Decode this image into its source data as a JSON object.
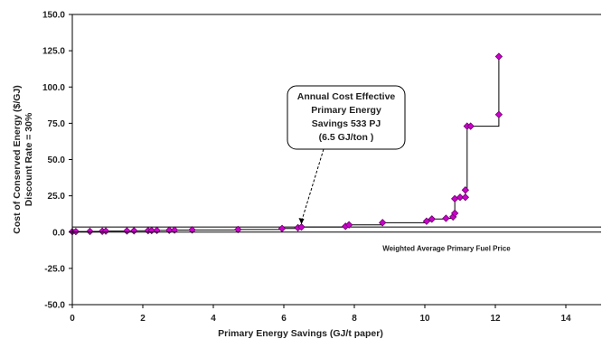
{
  "chart_data": {
    "type": "scatter",
    "xlabel": "Primary Energy Savings (GJ/t paper)",
    "ylabel_lines": [
      "Cost of Conserved Energy ($/GJ)",
      "Discount Rate = 30%"
    ],
    "xlim": [
      0,
      15
    ],
    "ylim": [
      -50,
      150
    ],
    "x_ticks": [
      "0",
      "2",
      "4",
      "6",
      "8",
      "10",
      "12",
      "14"
    ],
    "y_ticks": [
      "150.0",
      "125.0",
      "100.0",
      "75.0",
      "50.0",
      "25.0",
      "0.0",
      "-25.0",
      "-50.0"
    ],
    "marker_color": "#cc00cc",
    "grid": false,
    "series": [
      {
        "values": [
          [
            0.0,
            0.3
          ],
          [
            0.1,
            0.4
          ],
          [
            0.5,
            0.5
          ],
          [
            0.85,
            0.6
          ],
          [
            0.95,
            0.7
          ],
          [
            1.55,
            0.8
          ],
          [
            1.75,
            0.9
          ],
          [
            2.15,
            1.0
          ],
          [
            2.25,
            1.1
          ],
          [
            2.4,
            1.2
          ],
          [
            2.75,
            1.3
          ],
          [
            2.9,
            1.4
          ],
          [
            3.4,
            1.5
          ],
          [
            4.7,
            1.8
          ],
          [
            5.95,
            2.5
          ],
          [
            6.4,
            3.0
          ],
          [
            6.5,
            3.5
          ],
          [
            7.75,
            4.0
          ],
          [
            7.85,
            5.0
          ],
          [
            8.8,
            6.5
          ],
          [
            10.05,
            7.5
          ],
          [
            10.2,
            9.0
          ],
          [
            10.6,
            9.5
          ],
          [
            10.8,
            10.5
          ],
          [
            10.85,
            13.0
          ],
          [
            10.85,
            23.0
          ],
          [
            11.0,
            24.0
          ],
          [
            11.15,
            24.0
          ],
          [
            11.15,
            29.0
          ],
          [
            11.2,
            73.0
          ],
          [
            11.3,
            73.0
          ],
          [
            12.1,
            81.0
          ],
          [
            12.1,
            121.0
          ]
        ]
      }
    ],
    "reference_line": {
      "y": 3.5,
      "label": "Weighted Average Primary Fuel Price"
    },
    "annotation": {
      "lines": [
        "Annual Cost Effective",
        "Primary Energy",
        "Savings 533 PJ",
        "(6.5 GJ/ton    )"
      ],
      "points_to": [
        6.5,
        3.5
      ]
    }
  }
}
